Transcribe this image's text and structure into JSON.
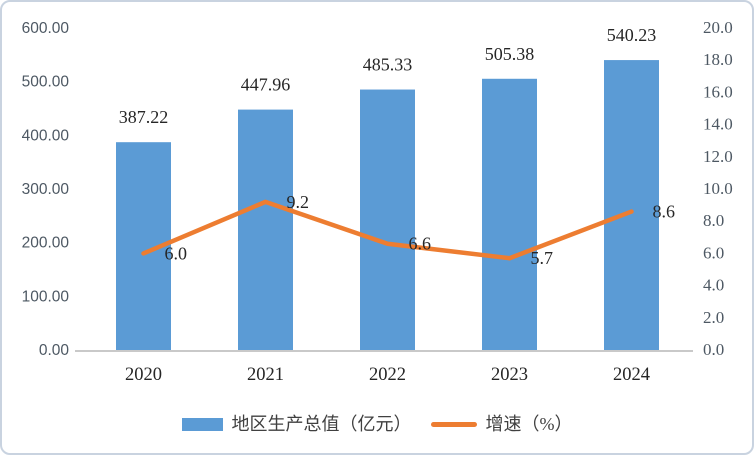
{
  "chart_data": {
    "type": "bar",
    "subtype": "bar-line-combo",
    "title": "",
    "categories": [
      "2020",
      "2021",
      "2022",
      "2023",
      "2024"
    ],
    "series": [
      {
        "name": "地区生产总值（亿元）",
        "type": "bar",
        "axis": "left",
        "values": [
          387.22,
          447.96,
          485.33,
          505.38,
          540.23
        ],
        "labels": [
          "387.22",
          "447.96",
          "485.33",
          "505.38",
          "540.23"
        ],
        "color": "#5B9BD5"
      },
      {
        "name": "增速（%）",
        "type": "line",
        "axis": "right",
        "values": [
          6.0,
          9.2,
          6.6,
          5.7,
          8.6
        ],
        "labels": [
          "6.0",
          "9.2",
          "6.6",
          "5.7",
          "8.6"
        ],
        "color": "#ED7D31"
      }
    ],
    "left_axis": {
      "min": 0,
      "max": 600,
      "step": 100,
      "tick_labels": [
        "0.00",
        "100.00",
        "200.00",
        "300.00",
        "400.00",
        "500.00",
        "600.00"
      ]
    },
    "right_axis": {
      "min": 0,
      "max": 20,
      "step": 2,
      "tick_labels": [
        "0.0",
        "2.0",
        "4.0",
        "6.0",
        "8.0",
        "10.0",
        "12.0",
        "14.0",
        "16.0",
        "18.0",
        "20.0"
      ]
    },
    "grid": false,
    "legend_position": "bottom",
    "colors": {
      "bar_fill": "#5B9BD5",
      "line_stroke": "#ED7D31",
      "axis_line": "#c9c9c9",
      "tick_text": "#4d5863",
      "label_text": "#262626",
      "legend_text": "#404040",
      "frame_border": "#c9d3e0"
    }
  }
}
